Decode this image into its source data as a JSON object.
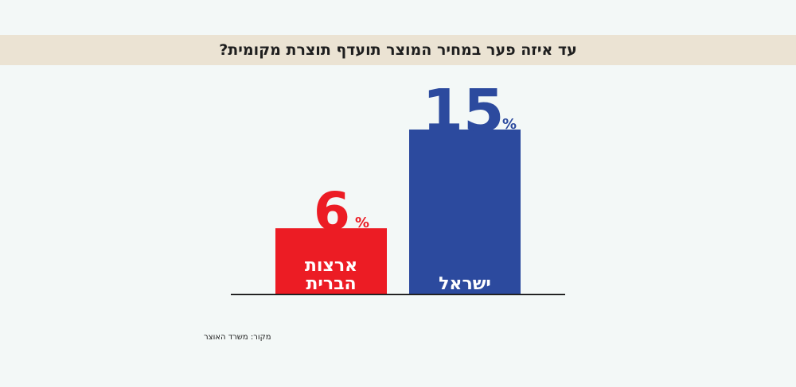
{
  "title": "עד איזה פער במחיר המוצר תועדף תוצרת מקומית?",
  "source": "מקור: משרד האוצר",
  "colors": {
    "background": "#f3f8f7",
    "title_band": "#ebe3d3",
    "axis": "#111111"
  },
  "chart_data": {
    "type": "bar",
    "categories": [
      "ארצות הברית",
      "ישראל"
    ],
    "category_lines": [
      [
        "ארצות",
        "הברית"
      ],
      [
        "ישראל"
      ]
    ],
    "values": [
      6,
      15
    ],
    "value_labels": [
      "6",
      "15"
    ],
    "unit": "%",
    "bar_colors": [
      "#ec1c24",
      "#2c4a9e"
    ],
    "ylim": [
      0,
      15
    ],
    "grid": false,
    "legend": "none",
    "xlabel": "",
    "ylabel": ""
  }
}
